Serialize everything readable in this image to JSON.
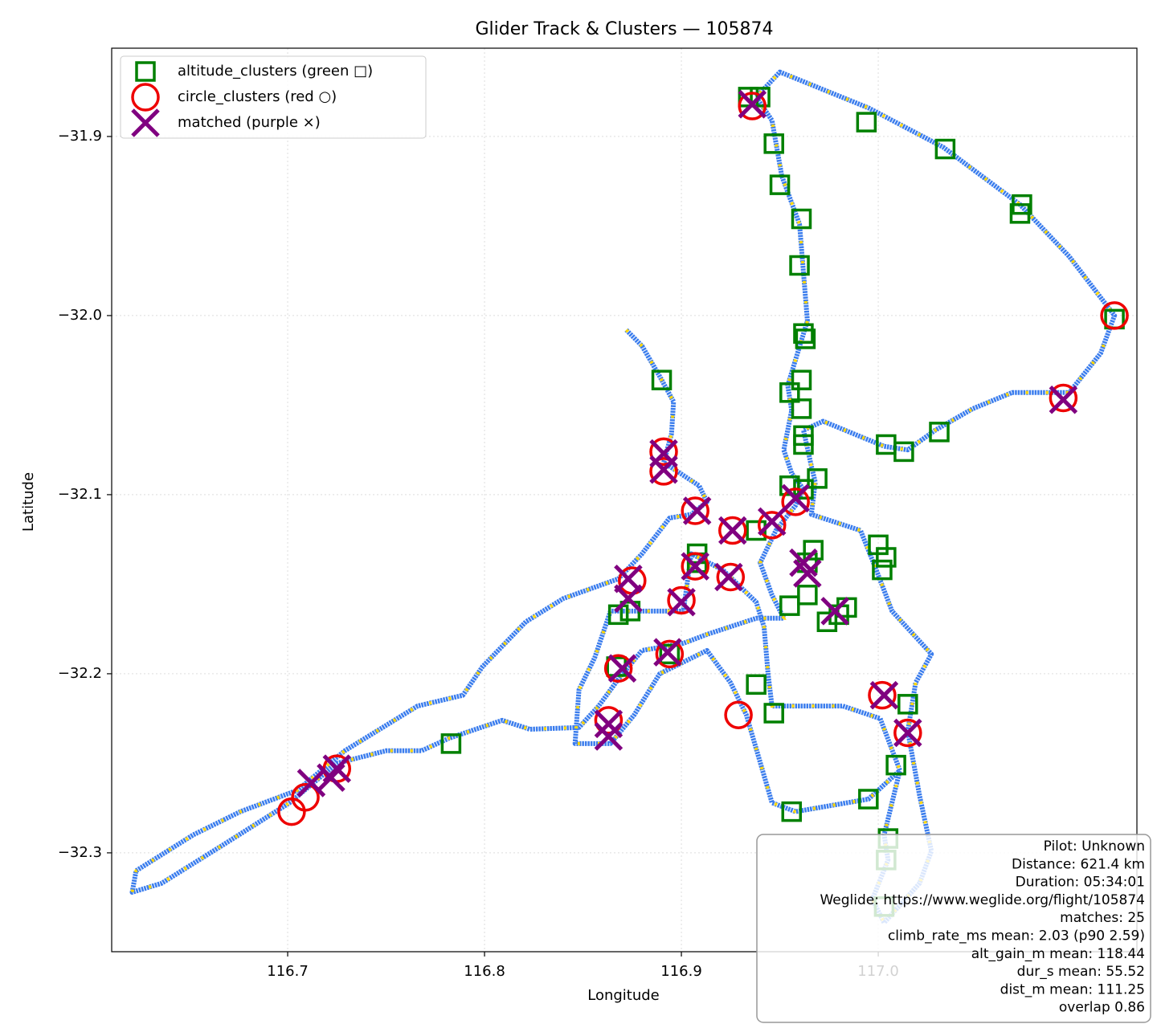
{
  "chart_data": {
    "type": "scatter",
    "title": "Glider Track & Clusters — 105874",
    "xlabel": "Longitude",
    "ylabel": "Latitude",
    "xlim": [
      116.6106,
      117.1314
    ],
    "ylim": [
      -32.3552,
      -31.8507
    ],
    "xticks": [
      116.7,
      116.8,
      116.9,
      {
        "value": 117,
        "label": "117.0"
      }
    ],
    "yticks": [
      {
        "value": -31.9,
        "label": "−31.9"
      },
      {
        "value": -32.0,
        "label": "−32.0"
      },
      {
        "value": -32.1,
        "label": "−32.1"
      },
      {
        "value": -32.2,
        "label": "−32.2"
      },
      {
        "value": -32.3,
        "label": "−32.3"
      }
    ],
    "grid": true,
    "legend": "upper left",
    "track": {
      "color": "#3b7ded",
      "dash_color": "#ffd700",
      "x": [
        116.872,
        116.88,
        116.889,
        116.896,
        116.895,
        116.891,
        116.909,
        116.913,
        116.905,
        116.894,
        116.88,
        116.868,
        116.84,
        116.821,
        116.799,
        116.789,
        116.766,
        116.729,
        116.705,
        116.676,
        116.652,
        116.623,
        116.621,
        116.636,
        116.668,
        116.701,
        116.725,
        116.75,
        116.768,
        116.782,
        116.809,
        116.823,
        116.848,
        116.858,
        116.868,
        116.88,
        116.901,
        116.913,
        116.938,
        116.952,
        116.946,
        116.94,
        116.948,
        116.958,
        116.962,
        116.956,
        116.952,
        116.956,
        116.954,
        116.959,
        116.964,
        116.962,
        116.96,
        116.951,
        116.946,
        116.938,
        116.95,
        116.995,
        117.033,
        117.072,
        117.097,
        117.12,
        117.113,
        117.097,
        117.068,
        117.048,
        117.029,
        117.015,
        117.003,
        116.972,
        116.962,
        116.966,
        116.968,
        116.966,
        116.991,
        116.999,
        117.007,
        117.027,
        117.019,
        117.015,
        117.021,
        117.027,
        117.021,
        117.003,
        116.997,
        117.005,
        117.003,
        117.011,
        117.001,
        116.982,
        116.962,
        116.946,
        116.944,
        116.942,
        116.938,
        116.921,
        116.905,
        116.901,
        116.864,
        116.856,
        116.848,
        116.846,
        116.864,
        116.876,
        116.889,
        116.913,
        116.925,
        116.933,
        116.946,
        116.958,
        116.995,
        117.011
      ],
      "y": [
        -32.008,
        -32.017,
        -32.034,
        -32.048,
        -32.066,
        -32.082,
        -32.095,
        -32.104,
        -32.111,
        -32.113,
        -32.133,
        -32.147,
        -32.158,
        -32.171,
        -32.196,
        -32.212,
        -32.218,
        -32.243,
        -32.265,
        -32.277,
        -32.29,
        -32.31,
        -32.322,
        -32.317,
        -32.295,
        -32.272,
        -32.25,
        -32.243,
        -32.243,
        -32.236,
        -32.226,
        -32.231,
        -32.23,
        -32.218,
        -32.203,
        -32.187,
        -32.183,
        -32.178,
        -32.169,
        -32.169,
        -32.156,
        -32.138,
        -32.12,
        -32.106,
        -32.097,
        -32.088,
        -32.075,
        -32.053,
        -32.039,
        -32.021,
        -32.003,
        -31.976,
        -31.949,
        -31.922,
        -31.891,
        -31.878,
        -31.864,
        -31.884,
        -31.906,
        -31.938,
        -31.967,
        -32.0,
        -32.021,
        -32.043,
        -32.043,
        -32.052,
        -32.064,
        -32.075,
        -32.073,
        -32.059,
        -32.064,
        -32.084,
        -32.093,
        -32.111,
        -32.12,
        -32.142,
        -32.165,
        -32.189,
        -32.205,
        -32.232,
        -32.268,
        -32.299,
        -32.317,
        -32.339,
        -32.326,
        -32.304,
        -32.29,
        -32.254,
        -32.225,
        -32.218,
        -32.218,
        -32.218,
        -32.2,
        -32.174,
        -32.16,
        -32.142,
        -32.133,
        -32.165,
        -32.165,
        -32.191,
        -32.209,
        -32.239,
        -32.239,
        -32.223,
        -32.2,
        -32.187,
        -32.205,
        -32.223,
        -32.272,
        -32.277,
        -32.27,
        -32.254
      ]
    },
    "series": [
      {
        "name": "altitude_clusters (green □)",
        "color": "#008000",
        "marker": "square",
        "x": [
          116.934,
          116.94,
          116.947,
          116.95,
          116.961,
          116.96,
          116.962,
          116.963,
          116.961,
          116.955,
          116.961,
          116.962,
          116.962,
          116.969,
          116.955,
          116.962,
          116.967,
          116.964,
          116.964,
          116.955,
          116.974,
          116.984,
          117.0,
          117.004,
          117.002,
          116.994,
          117.034,
          117.073,
          117.072,
          117.004,
          117.013,
          117.031,
          116.89,
          116.868,
          116.874,
          116.908,
          116.894,
          116.938,
          116.947,
          117.015,
          117.009,
          116.783,
          116.956,
          116.995,
          117.005,
          117.004,
          117.003,
          117.12,
          116.938,
          116.867,
          116.908,
          116.98
        ],
        "y": [
          -31.878,
          -31.878,
          -31.904,
          -31.927,
          -31.946,
          -31.972,
          -32.01,
          -32.013,
          -32.036,
          -32.043,
          -32.052,
          -32.067,
          -32.072,
          -32.091,
          -32.095,
          -32.097,
          -32.131,
          -32.138,
          -32.156,
          -32.162,
          -32.171,
          -32.163,
          -32.128,
          -32.135,
          -32.142,
          -31.892,
          -31.907,
          -31.938,
          -31.943,
          -32.072,
          -32.076,
          -32.065,
          -32.036,
          -32.167,
          -32.165,
          -32.138,
          -32.189,
          -32.206,
          -32.222,
          -32.217,
          -32.251,
          -32.239,
          -32.277,
          -32.27,
          -32.292,
          -32.304,
          -32.33,
          -32.002,
          -32.12,
          -32.196,
          -32.133,
          -32.167
        ]
      },
      {
        "name": "circle_clusters (red ○)",
        "color": "#ee0000",
        "marker": "circle",
        "x": [
          116.936,
          117.12,
          117.094,
          116.891,
          116.891,
          116.907,
          116.926,
          116.946,
          116.958,
          116.907,
          116.925,
          116.875,
          116.9,
          116.868,
          116.894,
          116.863,
          116.929,
          117.002,
          117.015,
          116.725,
          116.709,
          116.702
        ],
        "y": [
          -31.883,
          -32.0,
          -32.046,
          -32.076,
          -32.087,
          -32.109,
          -32.12,
          -32.117,
          -32.104,
          -32.14,
          -32.146,
          -32.148,
          -32.159,
          -32.197,
          -32.189,
          -32.226,
          -32.223,
          -32.212,
          -32.233,
          -32.253,
          -32.269,
          -32.277
        ]
      },
      {
        "name": "matched (purple ×)",
        "color": "#800080",
        "marker": "x",
        "x": [
          116.936,
          117.094,
          116.891,
          116.891,
          116.926,
          116.907,
          116.924,
          116.873,
          116.873,
          116.9,
          116.87,
          116.893,
          116.863,
          116.863,
          117.003,
          117.015,
          116.725,
          116.712,
          116.722,
          116.946,
          116.908,
          116.958,
          116.962,
          116.978,
          116.964
        ],
        "y": [
          -31.882,
          -32.047,
          -32.077,
          -32.086,
          -32.12,
          -32.14,
          -32.146,
          -32.147,
          -32.158,
          -32.16,
          -32.197,
          -32.188,
          -32.228,
          -32.235,
          -32.212,
          -32.233,
          -32.253,
          -32.261,
          -32.258,
          -32.115,
          -32.109,
          -32.102,
          -32.138,
          -32.165,
          -32.144
        ]
      }
    ],
    "annotation": [
      "Pilot: Unknown",
      "Distance: 621.4 km",
      "Duration: 05:34:01",
      "Weglide: https://www.weglide.org/flight/105874",
      "matches: 25",
      "climb_rate_ms mean: 2.03 (p90 2.59)",
      "alt_gain_m mean: 118.44",
      "dur_s mean: 55.52",
      "dist_m mean: 111.25",
      "overlap 0.86"
    ]
  }
}
